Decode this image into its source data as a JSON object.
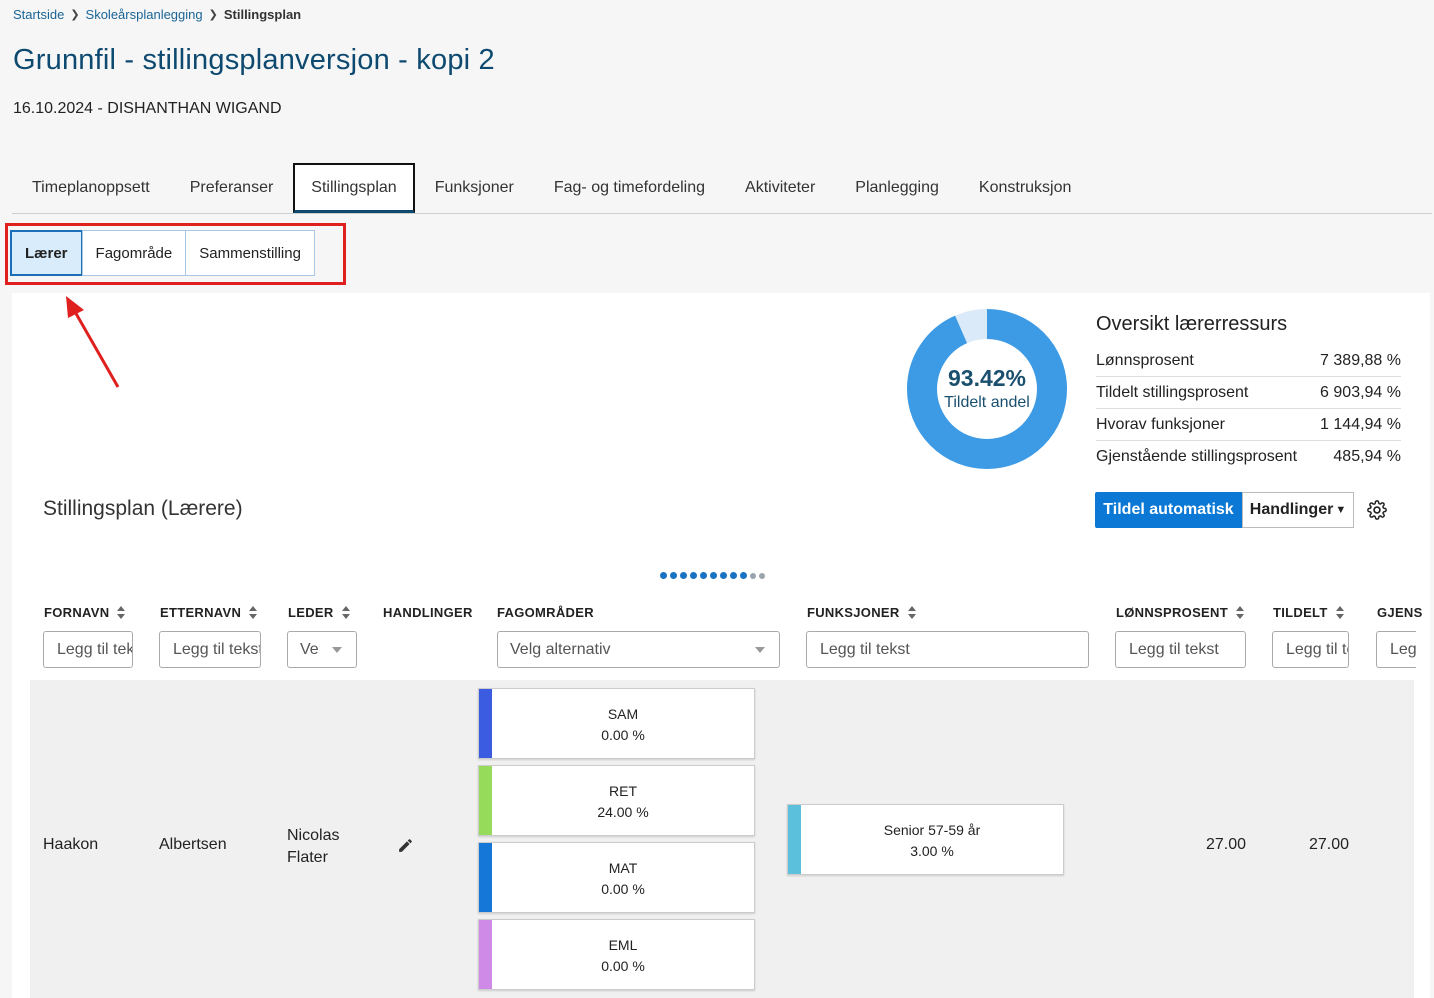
{
  "breadcrumb": {
    "home": "Startside",
    "parent": "Skoleårsplanlegging",
    "current": "Stillingsplan"
  },
  "page": {
    "title": "Grunnfil - stillingsplanversjon - kopi 2",
    "subtitle": "16.10.2024 - DISHANTHAN WIGAND"
  },
  "tabs": [
    "Timeplanoppsett",
    "Preferanser",
    "Stillingsplan",
    "Funksjoner",
    "Fag- og timefordeling",
    "Aktiviteter",
    "Planlegging",
    "Konstruksjon"
  ],
  "active_tab": "Stillingsplan",
  "subtabs": [
    "Lærer",
    "Fagområde",
    "Sammenstilling"
  ],
  "active_subtab": "Lærer",
  "donut": {
    "value": "93.42%",
    "label": "Tildelt andel",
    "fraction": 0.9342,
    "color": "#3d9ae4",
    "rest_color": "#dbeaf8"
  },
  "overview": {
    "title": "Oversikt lærerressurs",
    "rows": [
      {
        "label": "Lønnsprosent",
        "value": "7 389,88 %"
      },
      {
        "label": "Tildelt stillingsprosent",
        "value": "6 903,94 %"
      },
      {
        "label": "Hvorav funksjoner",
        "value": "1 144,94 %"
      },
      {
        "label": "Gjenstående stillingsprosent",
        "value": "485,94 %"
      }
    ]
  },
  "section": {
    "title": "Stillingsplan (Lærere)"
  },
  "actions": {
    "auto_assign": "Tildel automatisk",
    "handlinger": "Handlinger"
  },
  "table": {
    "headers": {
      "fornavn": "FORNAVN",
      "etternavn": "ETTERNAVN",
      "leder": "LEDER",
      "handlinger": "HANDLINGER",
      "fagomrader": "FAGOMRÅDER",
      "funksjoner": "FUNKSJONER",
      "lonnsprosent": "LØNNSPROSENT",
      "tildelt": "TILDELT",
      "gjens": "GJENS"
    },
    "filters": {
      "text_placeholder": "Legg til tekst",
      "select_placeholder": "Velg alternativ",
      "leder_value": "Ve"
    },
    "rows": [
      {
        "fornavn": "Haakon",
        "etternavn": "Albertsen",
        "leder": "Nicolas Flater",
        "fagomrader": [
          {
            "code": "SAM",
            "value": "0.00 %",
            "color": "#3b5ce0"
          },
          {
            "code": "RET",
            "value": "24.00 %",
            "color": "#96dc5a"
          },
          {
            "code": "MAT",
            "value": "0.00 %",
            "color": "#1578d8"
          },
          {
            "code": "EML",
            "value": "0.00 %",
            "color": "#cf8ae8"
          }
        ],
        "funksjoner": [
          {
            "name": "Senior 57-59 år",
            "value": "3.00 %",
            "color": "#5bc0dc"
          }
        ],
        "lonnsprosent": "27.00",
        "tildelt": "27.00"
      }
    ]
  }
}
